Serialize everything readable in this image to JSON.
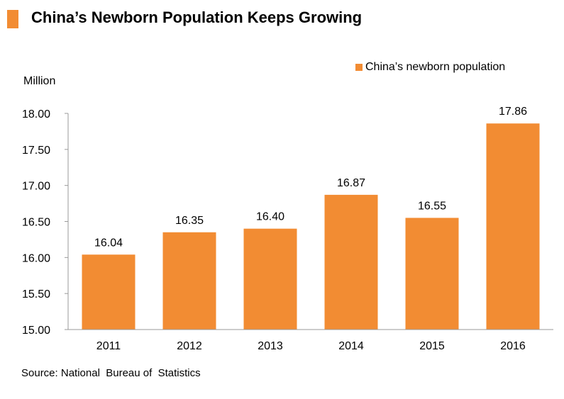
{
  "title": "China’s Newborn Population Keeps Growing",
  "colors": {
    "accent": "#f28c33",
    "axis": "#999999"
  },
  "footer": {
    "source": "Source: National  Bureau of  Statistics"
  },
  "chart_data": {
    "type": "bar",
    "title": "China’s Newborn Population Keeps Growing",
    "xlabel": "",
    "ylabel": "Million",
    "categories": [
      "2011",
      "2012",
      "2013",
      "2014",
      "2015",
      "2016"
    ],
    "series": [
      {
        "name": "China’s newborn population",
        "values": [
          16.04,
          16.35,
          16.4,
          16.87,
          16.55,
          17.86
        ]
      }
    ],
    "value_labels": [
      "16.04",
      "16.35",
      "16.40",
      "16.87",
      "16.55",
      "17.86"
    ],
    "yticks": [
      "15.00",
      "15.50",
      "16.00",
      "16.50",
      "17.00",
      "17.50",
      "18.00"
    ],
    "ylim": [
      15.0,
      18.0
    ],
    "grid": false,
    "legend_position": "top-right"
  }
}
